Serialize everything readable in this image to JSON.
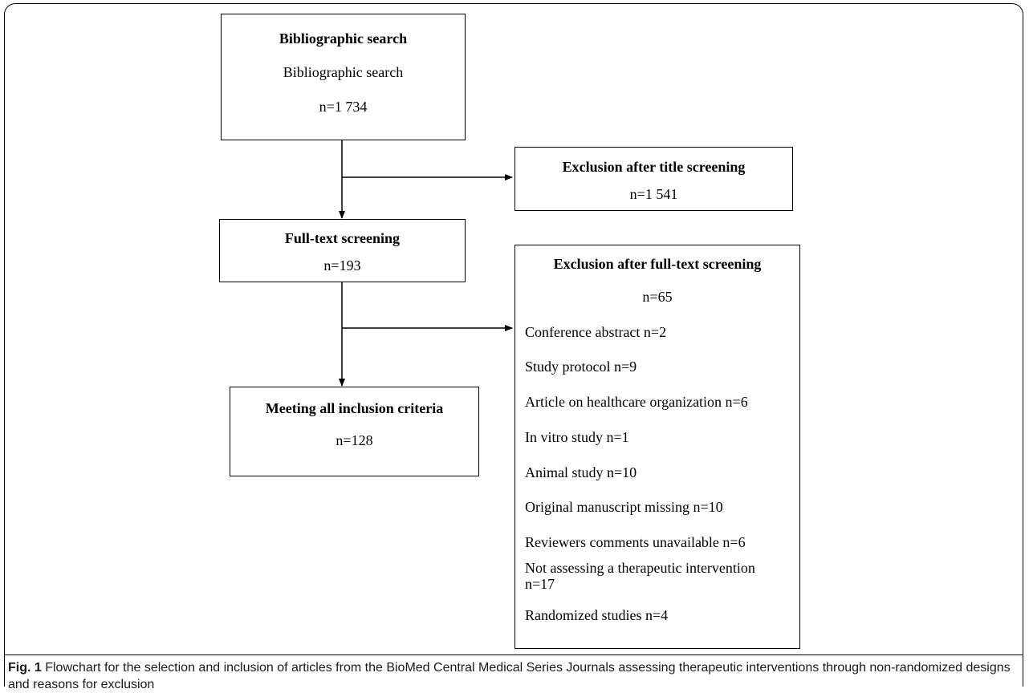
{
  "diagram": {
    "box_search": {
      "title": "Bibliographic search",
      "line1": "Bibliographic search",
      "count": "n=1 734"
    },
    "box_title_excl": {
      "title": "Exclusion after title screening",
      "count": "n=1 541"
    },
    "box_fulltext": {
      "title": "Full-text screening",
      "count": "n=193"
    },
    "box_fulltext_excl": {
      "title": "Exclusion after full-text screening",
      "count": "n=65",
      "reasons": [
        "Conference abstract n=2",
        "Study protocol n=9",
        "Article on healthcare organization n=6",
        "In vitro study n=1",
        "Animal study n=10",
        "Original manuscript missing n=10",
        "Reviewers comments unavailable n=6",
        "Not assessing a therapeutic intervention n=17",
        "Randomized studies n=4"
      ]
    },
    "box_included": {
      "title": "Meeting all inclusion criteria",
      "count": "n=128"
    }
  },
  "caption": {
    "label": "Fig. 1",
    "text": " Flowchart for the selection and inclusion of articles from the BioMed Central Medical Series Journals assessing therapeutic interventions through non-randomized designs and reasons for exclusion"
  }
}
